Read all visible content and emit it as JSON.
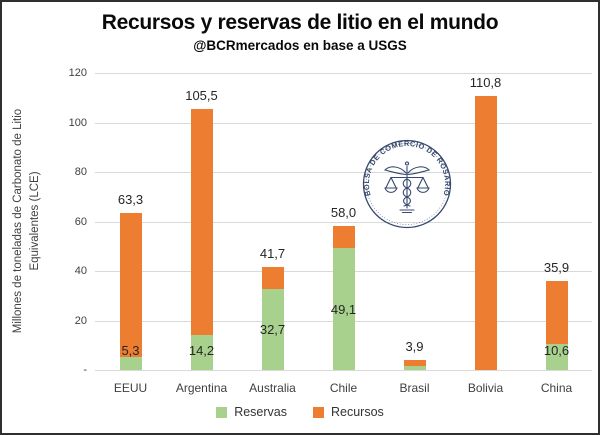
{
  "header": {
    "title": "Recursos y reservas de litio en el mundo",
    "subtitle": "@BCRmercados en base a USGS"
  },
  "watermark": {
    "text": "BOLSA DE COMERCIO DE ROSARIO",
    "color": "#37496E"
  },
  "legend": {
    "items": [
      {
        "label": "Reservas",
        "color": "#A9D18E"
      },
      {
        "label": "Recursos",
        "color": "#ED7D31"
      }
    ]
  },
  "chart_data": {
    "type": "bar",
    "stacked": true,
    "title": "Recursos y reservas de litio en el mundo",
    "subtitle": "@BCRmercados en base a USGS",
    "categories": [
      "EEUU",
      "Argentina",
      "Australia",
      "Chile",
      "Brasil",
      "Bolivia",
      "China"
    ],
    "series": [
      {
        "name": "Reservas",
        "color": "#A9D18E",
        "values": [
          5.3,
          14.2,
          32.7,
          49.1,
          1.6,
          0,
          10.6
        ],
        "labels": [
          "5,3",
          "14,2",
          "32,7",
          "49,1",
          "",
          "",
          "10,6"
        ]
      },
      {
        "name": "Recursos",
        "color": "#ED7D31",
        "values_are_bar_totals": true,
        "values": [
          63.3,
          105.5,
          41.7,
          58.0,
          3.9,
          110.8,
          35.9
        ],
        "labels": [
          "63,3",
          "105,5",
          "41,7",
          "58,0",
          "3,9",
          "110,8",
          "35,9"
        ]
      }
    ],
    "ylabel": "Millones de toneladas de Carbonato de Litio Equivalentes (LCE)",
    "ylabel_lines": [
      "Millones de toneladas de Carbonato de Litio",
      "Equivalentes (LCE)"
    ],
    "ylim": [
      0,
      120
    ],
    "ytick_step": 20,
    "yticks": [
      {
        "value": 0,
        "label": "-"
      },
      {
        "value": 20,
        "label": "20"
      },
      {
        "value": 40,
        "label": "40"
      },
      {
        "value": 60,
        "label": "60"
      },
      {
        "value": 80,
        "label": "80"
      },
      {
        "value": 100,
        "label": "100"
      },
      {
        "value": 120,
        "label": "120"
      }
    ],
    "grid": true,
    "legend_position": "bottom",
    "colors": {
      "grid": "#D9D9D9",
      "value_label": "#262626",
      "axis_text": "#404040"
    }
  }
}
